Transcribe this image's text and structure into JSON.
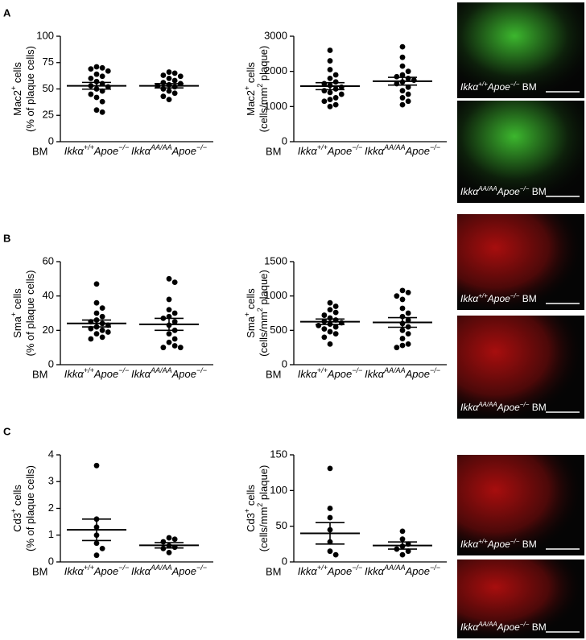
{
  "chart_data": [
    {
      "type": "dot",
      "panel": "A",
      "ylabel": [
        [
          "Mac2",
          "+",
          " cells"
        ],
        [
          "(% of plaque cells)"
        ]
      ],
      "bm_label": "BM",
      "categories": [
        [
          "Ikkα",
          "+/+",
          "Apoe",
          "−/−"
        ],
        [
          "Ikkα",
          "AA/AA",
          "Apoe",
          "−/−"
        ]
      ],
      "groups": [
        [
          71,
          70,
          69,
          67,
          64,
          62,
          60,
          57,
          55,
          53,
          52,
          50,
          48,
          45,
          42,
          38,
          30,
          28
        ],
        [
          66,
          65,
          63,
          62,
          60,
          58,
          56,
          55,
          54,
          53,
          52,
          50,
          48,
          46,
          43,
          40
        ]
      ],
      "mean": [
        53,
        53
      ],
      "sem": [
        3.2,
        2
      ],
      "ylim": [
        0,
        100
      ],
      "yticks": [
        0,
        25,
        50,
        75,
        100
      ]
    },
    {
      "type": "dot",
      "ylabel": [
        [
          "Mac2",
          "+",
          " cells"
        ],
        [
          "(cells/mm",
          "2",
          " plaque)"
        ]
      ],
      "bm_label": "BM",
      "categories": [
        [
          "Ikkα",
          "+/+",
          "Apoe",
          "−/−"
        ],
        [
          "Ikkα",
          "AA/AA",
          "Apoe",
          "−/−"
        ]
      ],
      "groups": [
        [
          2600,
          2300,
          2050,
          1900,
          1800,
          1700,
          1650,
          1600,
          1550,
          1500,
          1450,
          1400,
          1350,
          1250,
          1200,
          1150,
          1050,
          1000
        ],
        [
          2700,
          2400,
          2150,
          2000,
          1900,
          1850,
          1800,
          1750,
          1700,
          1650,
          1550,
          1450,
          1350,
          1250,
          1150,
          1050
        ]
      ],
      "mean": [
        1580,
        1720
      ],
      "sem": [
        100,
        110
      ],
      "ylim": [
        0,
        3000
      ],
      "yticks": [
        0,
        1000,
        2000,
        3000
      ]
    },
    {
      "type": "dot",
      "panel": "B",
      "ylabel": [
        [
          "Sma",
          "+",
          " cells"
        ],
        [
          "(% of plaque cells)"
        ]
      ],
      "bm_label": "BM",
      "categories": [
        [
          "Ikkα",
          "+/+",
          "Apoe",
          "−/−"
        ],
        [
          "Ikkα",
          "AA/AA",
          "Apoe",
          "−/−"
        ]
      ],
      "groups": [
        [
          47,
          36,
          33,
          30,
          28,
          26,
          25,
          24,
          23,
          22,
          21,
          20,
          19,
          18,
          16,
          15
        ],
        [
          50,
          48,
          38,
          32,
          30,
          28,
          27,
          25,
          23,
          20,
          18,
          15,
          13,
          11,
          10,
          10
        ]
      ],
      "mean": [
        24,
        23.5
      ],
      "sem": [
        2,
        3.5
      ],
      "ylim": [
        0,
        60
      ],
      "yticks": [
        0,
        20,
        40,
        60
      ]
    },
    {
      "type": "dot",
      "ylabel": [
        [
          "Sma",
          "+",
          " cells"
        ],
        [
          "(cells/mm",
          "2",
          " plaque)"
        ]
      ],
      "bm_label": "BM",
      "categories": [
        [
          "Ikkα",
          "+/+",
          "Apoe",
          "−/−"
        ],
        [
          "Ikkα",
          "AA/AA",
          "Apoe",
          "−/−"
        ]
      ],
      "groups": [
        [
          900,
          850,
          800,
          760,
          720,
          680,
          650,
          630,
          610,
          590,
          570,
          550,
          520,
          480,
          450,
          400,
          300
        ],
        [
          1080,
          1050,
          1000,
          950,
          820,
          750,
          700,
          650,
          600,
          550,
          500,
          450,
          380,
          300,
          280,
          250
        ]
      ],
      "mean": [
        625,
        615
      ],
      "sem": [
        40,
        70
      ],
      "ylim": [
        0,
        1500
      ],
      "yticks": [
        0,
        500,
        1000,
        1500
      ]
    },
    {
      "type": "dot",
      "panel": "C",
      "ylabel": [
        [
          "Cd3",
          "+",
          " cells"
        ],
        [
          "(% of plaque cells)"
        ]
      ],
      "bm_label": "BM",
      "categories": [
        [
          "Ikkα",
          "+/+",
          "Apoe",
          "−/−"
        ],
        [
          "Ikkα",
          "AA/AA",
          "Apoe",
          "−/−"
        ]
      ],
      "groups": [
        [
          3.6,
          1.6,
          1.3,
          1.0,
          0.7,
          0.5,
          0.25
        ],
        [
          0.9,
          0.85,
          0.75,
          0.6,
          0.55,
          0.5,
          0.35
        ]
      ],
      "mean": [
        1.2,
        0.62
      ],
      "sem": [
        0.4,
        0.1
      ],
      "ylim": [
        0,
        4
      ],
      "yticks": [
        0,
        1,
        2,
        3,
        4
      ]
    },
    {
      "type": "dot",
      "ylabel": [
        [
          "Cd3",
          "+",
          " cells"
        ],
        [
          "(cells/mm",
          "2",
          " plaque)"
        ]
      ],
      "bm_label": "BM",
      "categories": [
        [
          "Ikkα",
          "+/+",
          "Apoe",
          "−/−"
        ],
        [
          "Ikkα",
          "AA/AA",
          "Apoe",
          "−/−"
        ]
      ],
      "groups": [
        [
          131,
          75,
          62,
          45,
          28,
          15,
          10
        ],
        [
          43,
          32,
          25,
          22,
          18,
          15,
          10
        ]
      ],
      "mean": [
        40,
        23
      ],
      "sem": [
        15,
        5
      ],
      "ylim": [
        0,
        150
      ],
      "yticks": [
        0,
        50,
        100,
        150
      ]
    }
  ],
  "images": [
    {
      "parts": [
        "Ikkα",
        "+/+",
        "Apoe",
        "−/−"
      ],
      "suffix": " BM",
      "color": "#3fc030"
    },
    {
      "parts": [
        "Ikkα",
        "AA/AA",
        "Apoe",
        "−/−"
      ],
      "suffix": " BM",
      "color": "#3fc030"
    },
    {
      "parts": [
        "Ikkα",
        "+/+",
        "Apoe",
        "−/−"
      ],
      "suffix": " BM",
      "color": "#d01010"
    },
    {
      "parts": [
        "Ikkα",
        "AA/AA",
        "Apoe",
        "−/−"
      ],
      "suffix": " BM",
      "color": "#d01010"
    },
    {
      "parts": [
        "Ikkα",
        "+/+",
        "Apoe",
        "−/−"
      ],
      "suffix": " BM",
      "color": "#d01010"
    },
    {
      "parts": [
        "Ikkα",
        "AA/AA",
        "Apoe",
        "−/−"
      ],
      "suffix": " BM",
      "color": "#d01010"
    }
  ]
}
